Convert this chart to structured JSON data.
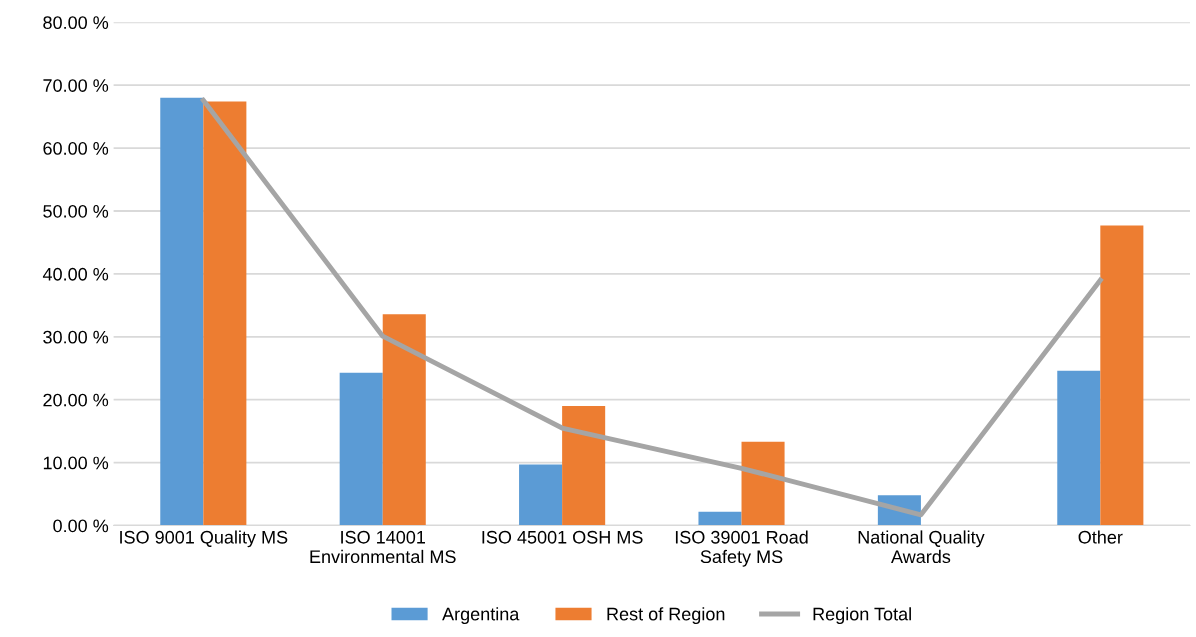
{
  "chart_data": {
    "type": "bar",
    "categories": [
      "ISO 9001 Quality MS",
      "ISO 14001\nEnvironmental MS",
      "ISO 45001 OSH MS",
      "ISO 39001 Road\nSafety MS",
      "National Quality\nAwards",
      "Other"
    ],
    "series": [
      {
        "name": "Argentina",
        "color": "#5b9bd5",
        "values": [
          68.0,
          24.3,
          9.7,
          2.2,
          4.8,
          24.6
        ]
      },
      {
        "name": "Rest of Region",
        "color": "#ed7d31",
        "values": [
          67.4,
          33.6,
          19.0,
          13.3,
          null,
          47.7
        ]
      },
      {
        "name": "Region Total",
        "type": "line",
        "color": "#a5a5a5",
        "values": [
          67.6,
          30.1,
          15.5,
          9.1,
          1.7,
          39.0
        ]
      }
    ],
    "ylim": [
      0,
      80
    ],
    "yticks": [
      {
        "value": 0,
        "label": "0.00 %"
      },
      {
        "value": 10,
        "label": "10.00 %"
      },
      {
        "value": 20,
        "label": "20.00 %"
      },
      {
        "value": 30,
        "label": "30.00 %"
      },
      {
        "value": 40,
        "label": "40.00 %"
      },
      {
        "value": 50,
        "label": "50.00 %"
      },
      {
        "value": 60,
        "label": "60.00 %"
      },
      {
        "value": 70,
        "label": "70.00 %"
      },
      {
        "value": 80,
        "label": "80.00 %"
      }
    ],
    "grid": "y",
    "legend": "bottom",
    "marker": "none",
    "line_style": "solid"
  }
}
